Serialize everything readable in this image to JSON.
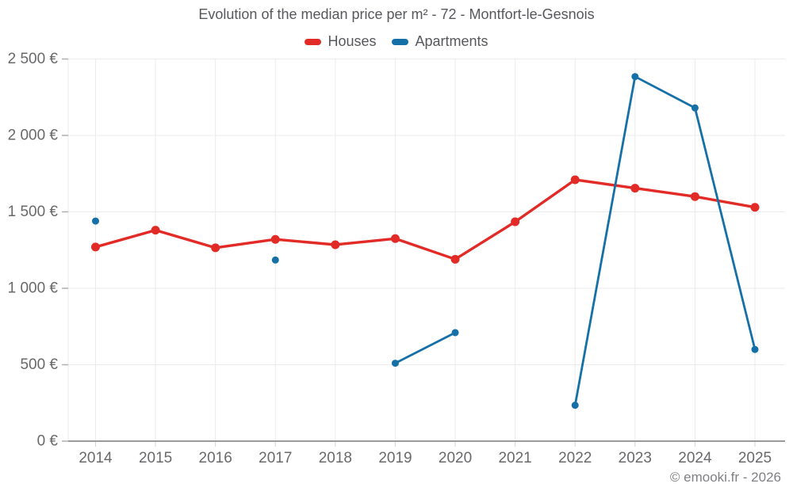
{
  "chart_data": {
    "type": "line",
    "title": "Evolution of the median price per m² - 72 - Montfort-le-Gesnois",
    "x": [
      2014,
      2015,
      2016,
      2017,
      2018,
      2019,
      2020,
      2021,
      2022,
      2023,
      2024,
      2025
    ],
    "series": [
      {
        "name": "Houses",
        "color": "#e22b27",
        "values": [
          1270,
          1380,
          1265,
          1320,
          1285,
          1325,
          1190,
          1435,
          1710,
          1655,
          1600,
          1530
        ]
      },
      {
        "name": "Apartments",
        "color": "#1670a8",
        "values": [
          1440,
          null,
          null,
          1185,
          null,
          510,
          710,
          null,
          235,
          2385,
          2180,
          600
        ]
      }
    ],
    "xlabel": "",
    "ylabel": "",
    "ylim": [
      0,
      2500
    ],
    "ytick_step": 500,
    "ytick_labels": [
      "0 €",
      "500 €",
      "1 000 €",
      "1 500 €",
      "2 000 €",
      "2 500 €"
    ],
    "grid": true,
    "legend_position": "top"
  },
  "footer": {
    "copyright": "© emooki.fr - 2026"
  },
  "colors": {
    "houses": "#e22b27",
    "apartments": "#1670a8",
    "gridline": "#ebebeb",
    "axis_line": "#9b9b9b",
    "tick": "#b0b0b0",
    "x_tick": "#d4d4d4",
    "title_text": "#57585c",
    "axis_text": "#69696c",
    "footer_text": "#808084"
  }
}
